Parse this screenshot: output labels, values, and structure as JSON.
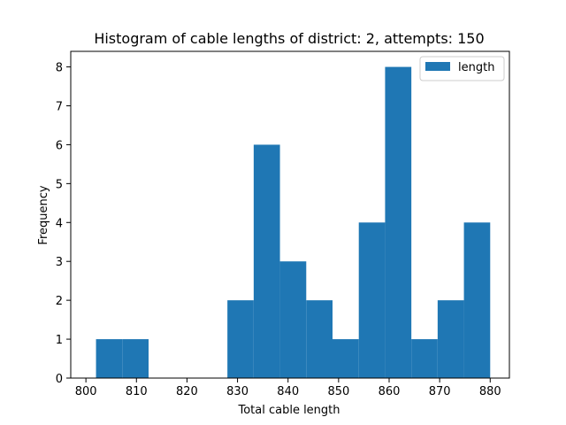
{
  "chart_data": {
    "type": "bar",
    "title": "Histogram of cable lengths of district: 2, attempts: 150",
    "xlabel": "Total cable length",
    "ylabel": "Frequency",
    "xlim": [
      800,
      880
    ],
    "ylim": [
      0,
      8
    ],
    "x_ticks": [
      800,
      810,
      820,
      830,
      840,
      850,
      860,
      870,
      880
    ],
    "y_ticks": [
      0,
      1,
      2,
      3,
      4,
      5,
      6,
      7,
      8
    ],
    "x_tick_labels": [
      "800",
      "810",
      "820",
      "830",
      "840",
      "850",
      "860",
      "870",
      "880"
    ],
    "y_tick_labels": [
      "0",
      "1",
      "2",
      "3",
      "4",
      "5",
      "6",
      "7",
      "8"
    ],
    "bins": [
      {
        "start": 802,
        "end": 807.2,
        "count": 1
      },
      {
        "start": 807.2,
        "end": 812.4,
        "count": 1
      },
      {
        "start": 812.4,
        "end": 817.6,
        "count": 0
      },
      {
        "start": 817.6,
        "end": 822.8,
        "count": 0
      },
      {
        "start": 822.8,
        "end": 828.0,
        "count": 0
      },
      {
        "start": 828.0,
        "end": 833.2,
        "count": 2
      },
      {
        "start": 833.2,
        "end": 838.4,
        "count": 6
      },
      {
        "start": 838.4,
        "end": 843.6,
        "count": 3
      },
      {
        "start": 843.6,
        "end": 848.8,
        "count": 2
      },
      {
        "start": 848.8,
        "end": 854.0,
        "count": 1
      },
      {
        "start": 854.0,
        "end": 859.2,
        "count": 4
      },
      {
        "start": 859.2,
        "end": 864.4,
        "count": 8
      },
      {
        "start": 864.4,
        "end": 869.6,
        "count": 1
      },
      {
        "start": 869.6,
        "end": 874.8,
        "count": 2
      },
      {
        "start": 874.8,
        "end": 880.0,
        "count": 4
      }
    ],
    "series": [
      {
        "name": "length",
        "color": "#1f77b4"
      }
    ],
    "legend": {
      "position": "top-right"
    },
    "grid": false
  }
}
